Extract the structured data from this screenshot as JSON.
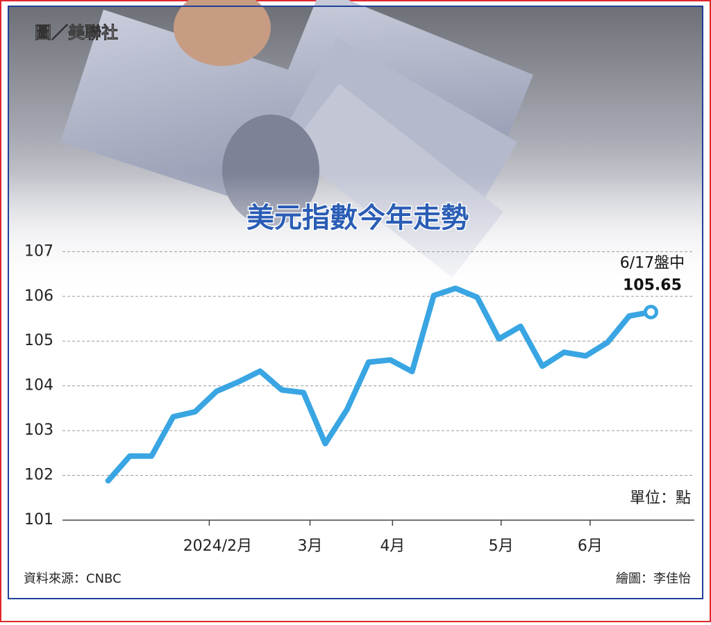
{
  "chart_data": {
    "type": "line",
    "photo_credit": "圖／美聯社",
    "title": "美元指數今年走勢",
    "unit": "單位：點",
    "source": "資料來源：CNBC",
    "credit": "繪圖：李佳怡",
    "annotation": "6/17盤中",
    "x": [
      0,
      1,
      2,
      3,
      4,
      5,
      6,
      7,
      8,
      9,
      10,
      11,
      12,
      13,
      14,
      15,
      16,
      17,
      18,
      19,
      20,
      21,
      22,
      23,
      24,
      25
    ],
    "xlim": [
      -2.1,
      27
    ],
    "xticks": [
      {
        "value": 4.66,
        "label": "2024/2月"
      },
      {
        "value": 9.3,
        "label": "3月"
      },
      {
        "value": 13.1,
        "label": "4月"
      },
      {
        "value": 18.1,
        "label": "5月"
      },
      {
        "value": 22.2,
        "label": "6月"
      }
    ],
    "ylim": [
      101,
      107.3
    ],
    "yticks": [
      101,
      102,
      103,
      104,
      105,
      106,
      107
    ],
    "grid": true,
    "series": [
      {
        "color": "#39a5e2",
        "values": [
          101.88,
          102.43,
          102.43,
          103.31,
          103.42,
          103.88,
          104.09,
          104.33,
          103.91,
          103.85,
          102.71,
          103.47,
          104.53,
          104.58,
          104.32,
          106.02,
          106.18,
          105.98,
          105.05,
          105.33,
          104.44,
          104.75,
          104.67,
          104.97,
          105.56,
          105.65
        ]
      }
    ]
  }
}
